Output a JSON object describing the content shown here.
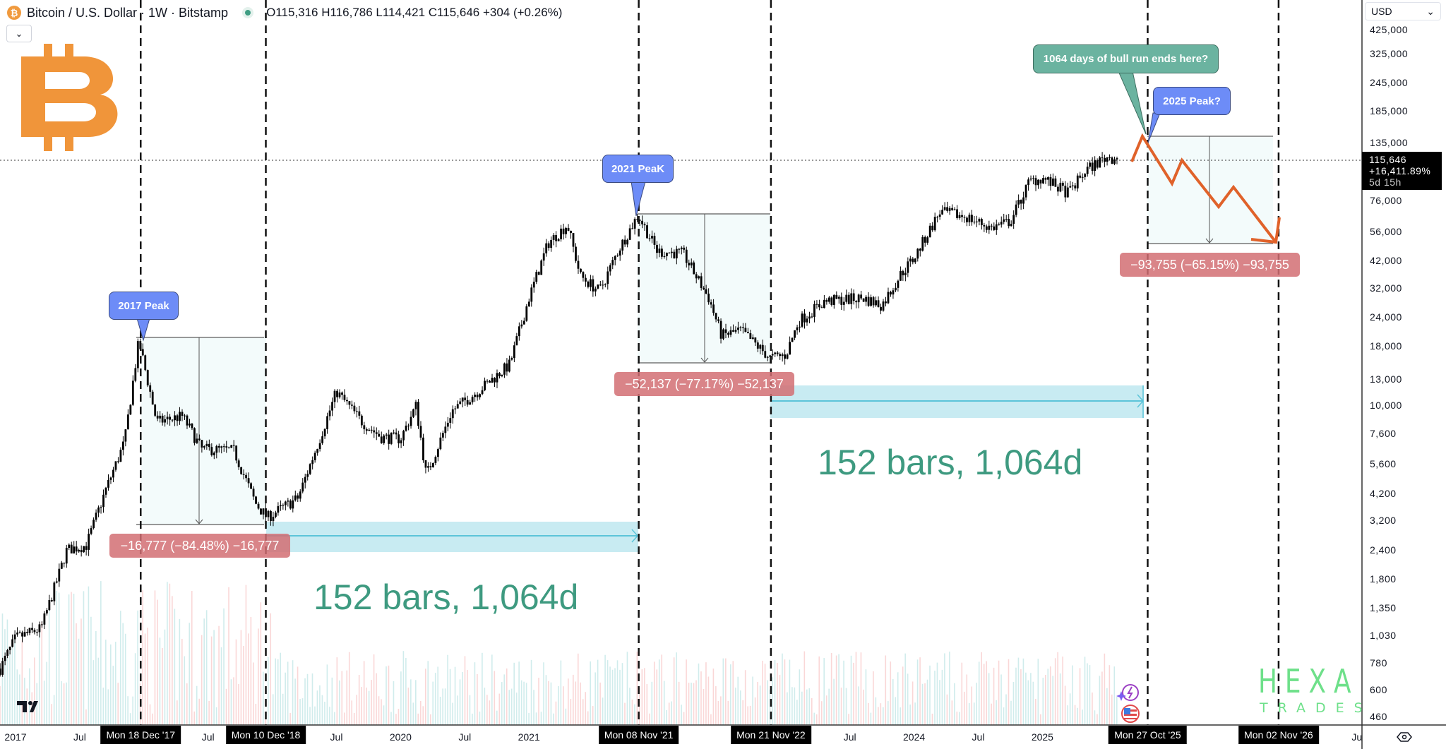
{
  "header": {
    "symbol_icon": "bitcoin-icon",
    "title": "Bitcoin / U.S. Dollar · 1W · Bitstamp",
    "ohlc": "O115,316 H116,786 L114,421 C115,646 +304 (+0.26%)",
    "collapse_icon": "chevron-down-icon"
  },
  "currency_select": "USD",
  "price_label": {
    "price": "115,646",
    "change": "+16,411.89%",
    "countdown": "5d 15h"
  },
  "watermark": {
    "line1": "HEXA",
    "line2": "TRADES"
  },
  "colors": {
    "candle": "#000000",
    "peak_bubble": "#6d8cf7",
    "note_bubble": "#6bb3a0",
    "drawdown_label": "#d26e73",
    "duration_bar": "#c8ebf2",
    "projection": "#e0622a",
    "bars_text": "#3e9a80",
    "logo": "#f0953a",
    "watermark": "#6ee08a"
  },
  "chart_data": {
    "type": "candlestick",
    "interval": "1W",
    "y_scale": "log",
    "ylim": [
      420,
      460000
    ],
    "xlim": [
      "2016-11",
      "2027-06"
    ],
    "grid": false,
    "y_ticks": [
      "425,000",
      "325,000",
      "245,000",
      "185,000",
      "135,000",
      "76,000",
      "56,000",
      "42,000",
      "32,000",
      "24,000",
      "18,000",
      "13,000",
      "10,000",
      "7,600",
      "5,600",
      "4,200",
      "3,200",
      "2,400",
      "1,800",
      "1,350",
      "1,030",
      "780",
      "600",
      "460"
    ],
    "y_tick_values": [
      425000,
      325000,
      245000,
      185000,
      135000,
      76000,
      56000,
      42000,
      32000,
      24000,
      18000,
      13000,
      10000,
      7600,
      5600,
      4200,
      3200,
      2400,
      1800,
      1350,
      1030,
      780,
      600,
      460
    ],
    "x_ticks": [
      {
        "label": "2017",
        "t": 2017.0
      },
      {
        "label": "Jul",
        "t": 2017.5
      },
      {
        "label": "Jul",
        "t": 2018.5
      },
      {
        "label": "Jul",
        "t": 2019.5
      },
      {
        "label": "2020",
        "t": 2020.0
      },
      {
        "label": "Jul",
        "t": 2020.5
      },
      {
        "label": "2021",
        "t": 2021.0
      },
      {
        "label": "Jul",
        "t": 2023.5
      },
      {
        "label": "2024",
        "t": 2024.0
      },
      {
        "label": "Jul",
        "t": 2024.5
      },
      {
        "label": "2025",
        "t": 2025.0
      },
      {
        "label": "Ju",
        "t": 2027.45
      }
    ],
    "marker_dates": [
      {
        "label": "Mon 18 Dec '17",
        "t": 2017.975
      },
      {
        "label": "Mon 10 Dec '18",
        "t": 2018.95
      },
      {
        "label": "Mon 08 Nov '21",
        "t": 2021.855
      },
      {
        "label": "Mon 21 Nov '22",
        "t": 2022.885
      },
      {
        "label": "Mon 27 Oct '25",
        "t": 2025.82
      },
      {
        "label": "Mon 02 Nov '26",
        "t": 2026.84
      }
    ],
    "price_path": [
      [
        2016.88,
        740
      ],
      [
        2017.0,
        1000
      ],
      [
        2017.2,
        1100
      ],
      [
        2017.4,
        2400
      ],
      [
        2017.55,
        2500
      ],
      [
        2017.7,
        4300
      ],
      [
        2017.85,
        7000
      ],
      [
        2017.96,
        19000
      ],
      [
        2018.1,
        8500
      ],
      [
        2018.3,
        9000
      ],
      [
        2018.45,
        6500
      ],
      [
        2018.7,
        6400
      ],
      [
        2018.87,
        3800
      ],
      [
        2018.96,
        3300
      ],
      [
        2019.2,
        4000
      ],
      [
        2019.4,
        8000
      ],
      [
        2019.5,
        11500
      ],
      [
        2019.7,
        8500
      ],
      [
        2019.85,
        7300
      ],
      [
        2020.0,
        7200
      ],
      [
        2020.12,
        10000
      ],
      [
        2020.2,
        5000
      ],
      [
        2020.4,
        9500
      ],
      [
        2020.6,
        11500
      ],
      [
        2020.85,
        15000
      ],
      [
        2021.0,
        29000
      ],
      [
        2021.15,
        50000
      ],
      [
        2021.3,
        60000
      ],
      [
        2021.4,
        36000
      ],
      [
        2021.55,
        31000
      ],
      [
        2021.7,
        47000
      ],
      [
        2021.85,
        66000
      ],
      [
        2022.0,
        46000
      ],
      [
        2022.2,
        45000
      ],
      [
        2022.4,
        29000
      ],
      [
        2022.5,
        20000
      ],
      [
        2022.65,
        21000
      ],
      [
        2022.88,
        16000
      ],
      [
        2023.0,
        16500
      ],
      [
        2023.1,
        23000
      ],
      [
        2023.3,
        28000
      ],
      [
        2023.6,
        29000
      ],
      [
        2023.75,
        27000
      ],
      [
        2023.9,
        37000
      ],
      [
        2024.0,
        43000
      ],
      [
        2024.2,
        68000
      ],
      [
        2024.4,
        65000
      ],
      [
        2024.6,
        58000
      ],
      [
        2024.75,
        62000
      ],
      [
        2024.9,
        92000
      ],
      [
        2025.0,
        95000
      ],
      [
        2025.2,
        82000
      ],
      [
        2025.35,
        104000
      ],
      [
        2025.5,
        117000
      ],
      [
        2025.6,
        115646
      ]
    ],
    "current_price": 115646,
    "annotations": {
      "peak_2017": "2017 Peak",
      "peak_2021": "2021 PeaK",
      "peak_2025": "2025 Peak?",
      "bull_note": "1064 days of bull run ends here?",
      "drawdown_2018": "−16,777 (−84.48%) −16,777",
      "drawdown_2022": "−52,137 (−77.17%) −52,137",
      "drawdown_2026": "−93,755 (−65.15%) −93,755",
      "duration_1": "152 bars, 1,064d",
      "duration_2": "152 bars, 1,064d"
    }
  }
}
